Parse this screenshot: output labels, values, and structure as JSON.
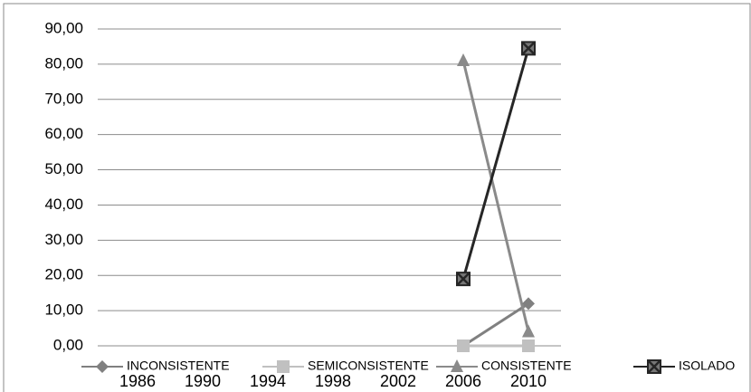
{
  "chart_data": {
    "type": "line",
    "categories": [
      "1986",
      "1990",
      "1994",
      "1998",
      "2002",
      "2006",
      "2010"
    ],
    "series": [
      {
        "name": "INCONSISTENTE",
        "color": "#808080",
        "marker": "diamond",
        "values": [
          null,
          null,
          null,
          null,
          null,
          0,
          12
        ]
      },
      {
        "name": "SEMICONSISTENTE",
        "color": "#c0c0c0",
        "marker": "square",
        "values": [
          null,
          null,
          null,
          null,
          null,
          0,
          0
        ]
      },
      {
        "name": "CONSISTENTE",
        "color": "#8a8a8a",
        "marker": "triangle",
        "values": [
          null,
          null,
          null,
          null,
          null,
          81,
          4
        ]
      },
      {
        "name": "ISOLADO",
        "color": "#262626",
        "marker": "xsquare",
        "values": [
          null,
          null,
          null,
          null,
          null,
          19,
          84.5
        ]
      }
    ],
    "ylim": [
      0,
      90
    ],
    "yticks": [
      {
        "value": 0,
        "label": "0,00"
      },
      {
        "value": 10,
        "label": "10,00"
      },
      {
        "value": 20,
        "label": "20,00"
      },
      {
        "value": 30,
        "label": "30,00"
      },
      {
        "value": 40,
        "label": "40,00"
      },
      {
        "value": 50,
        "label": "50,00"
      },
      {
        "value": 60,
        "label": "60,00"
      },
      {
        "value": 70,
        "label": "70,00"
      },
      {
        "value": 80,
        "label": "80,00"
      },
      {
        "value": 90,
        "label": "90,00"
      }
    ],
    "grid": true,
    "legend": "bottom"
  }
}
